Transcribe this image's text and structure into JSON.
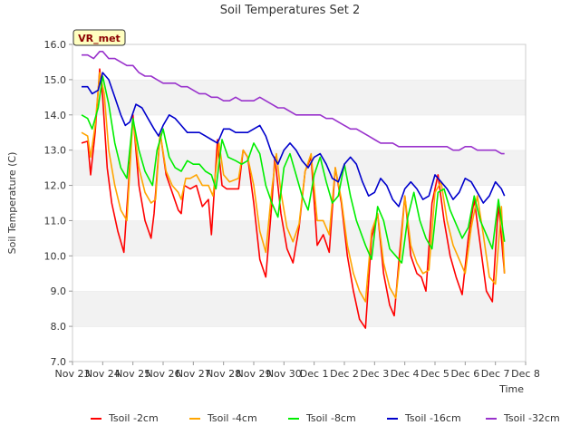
{
  "chart_data": {
    "type": "line",
    "title": "Soil Temperatures Set 2",
    "xlabel": "Time",
    "ylabel": "Soil Temperature (C)",
    "xlim": [
      0,
      15
    ],
    "ylim": [
      7.0,
      16.0
    ],
    "yticks": [
      "7.0",
      "8.0",
      "9.0",
      "10.0",
      "11.0",
      "12.0",
      "13.0",
      "14.0",
      "15.0",
      "16.0"
    ],
    "xtick_labels": [
      "Nov 23",
      "Nov 24",
      "Nov 25",
      "Nov 26",
      "Nov 27",
      "Nov 28",
      "Nov 29",
      "Nov 30",
      "Dec 1",
      "Dec 2",
      "Dec 3",
      "Dec 4",
      "Dec 5",
      "Dec 6",
      "Dec 7",
      "Dec 8"
    ],
    "grid": "horizontal bands",
    "legend_position": "bottom",
    "station_badge": "VR_met",
    "series": [
      {
        "name": "Tsoil -2cm",
        "color": "#ff0000",
        "x": [
          0.3,
          0.5,
          0.6,
          0.75,
          0.9,
          1.0,
          1.15,
          1.3,
          1.5,
          1.7,
          1.85,
          2.0,
          2.2,
          2.4,
          2.6,
          2.7,
          2.9,
          3.1,
          3.3,
          3.5,
          3.6,
          3.7,
          3.9,
          4.1,
          4.3,
          4.5,
          4.6,
          4.8,
          4.95,
          5.1,
          5.3,
          5.5,
          5.65,
          5.8,
          6.0,
          6.2,
          6.4,
          6.6,
          6.7,
          6.9,
          7.1,
          7.3,
          7.5,
          7.7,
          7.9,
          8.1,
          8.3,
          8.5,
          8.7,
          8.9,
          9.1,
          9.3,
          9.5,
          9.7,
          9.9,
          10.1,
          10.3,
          10.5,
          10.65,
          10.8,
          11.0,
          11.2,
          11.4,
          11.55,
          11.7,
          11.9,
          12.1,
          12.3,
          12.5,
          12.7,
          12.9,
          13.1,
          13.3,
          13.5,
          13.7,
          13.9,
          14.1,
          14.3
        ],
        "y": [
          13.2,
          13.25,
          12.3,
          13.5,
          15.3,
          14.5,
          12.5,
          11.5,
          10.7,
          10.1,
          12.0,
          14.0,
          12.0,
          11.0,
          10.5,
          11.2,
          13.5,
          12.3,
          11.8,
          11.3,
          11.2,
          12.0,
          11.9,
          12.0,
          11.4,
          11.6,
          10.6,
          13.3,
          12.0,
          11.9,
          11.9,
          11.9,
          13.0,
          12.8,
          11.5,
          9.9,
          9.4,
          11.5,
          12.8,
          11.2,
          10.2,
          9.8,
          10.8,
          12.4,
          12.8,
          10.3,
          10.6,
          10.1,
          12.5,
          11.5,
          10.0,
          9.0,
          8.2,
          7.95,
          10.5,
          11.2,
          9.5,
          8.6,
          8.3,
          9.8,
          11.7,
          10.0,
          9.5,
          9.4,
          9.0,
          11.5,
          12.3,
          11.0,
          10.0,
          9.4,
          8.9,
          10.5,
          11.6,
          10.3,
          9.0,
          8.7,
          11.5,
          9.5
        ],
        "_": ""
      },
      {
        "name": "Tsoil -4cm",
        "color": "#ffa500",
        "x": [
          0.3,
          0.5,
          0.6,
          0.75,
          0.9,
          1.05,
          1.2,
          1.4,
          1.6,
          1.8,
          2.0,
          2.2,
          2.4,
          2.6,
          2.75,
          2.9,
          3.1,
          3.3,
          3.5,
          3.6,
          3.75,
          3.9,
          4.1,
          4.3,
          4.5,
          4.65,
          4.85,
          5.0,
          5.2,
          5.5,
          5.65,
          5.8,
          6.0,
          6.2,
          6.4,
          6.6,
          6.75,
          6.9,
          7.1,
          7.3,
          7.5,
          7.7,
          7.9,
          8.1,
          8.3,
          8.5,
          8.7,
          8.9,
          9.1,
          9.3,
          9.5,
          9.7,
          9.9,
          10.1,
          10.3,
          10.5,
          10.7,
          10.85,
          11.0,
          11.2,
          11.4,
          11.6,
          11.8,
          12.0,
          12.2,
          12.4,
          12.6,
          12.8,
          13.0,
          13.2,
          13.4,
          13.6,
          13.8,
          14.0,
          14.2,
          14.3
        ],
        "y": [
          13.5,
          13.4,
          12.8,
          13.7,
          15.2,
          14.6,
          13.0,
          12.0,
          11.3,
          11.0,
          13.9,
          12.5,
          11.8,
          11.5,
          11.6,
          13.5,
          12.4,
          12.0,
          11.8,
          11.6,
          12.2,
          12.2,
          12.3,
          12.0,
          12.0,
          11.7,
          13.2,
          12.3,
          12.1,
          12.2,
          13.0,
          12.8,
          12.0,
          10.7,
          10.1,
          11.9,
          12.9,
          11.8,
          10.8,
          10.4,
          10.9,
          12.4,
          12.9,
          11.0,
          11.0,
          10.6,
          12.5,
          11.6,
          10.3,
          9.5,
          9.0,
          8.7,
          10.7,
          11.2,
          9.8,
          9.1,
          8.8,
          10.0,
          11.7,
          10.3,
          9.8,
          9.5,
          9.6,
          11.8,
          12.1,
          11.0,
          10.3,
          9.9,
          9.5,
          10.8,
          11.7,
          10.6,
          9.4,
          9.2,
          11.4,
          9.5
        ]
      },
      {
        "name": "Tsoil -8cm",
        "color": "#00ee00",
        "x": [
          0.3,
          0.5,
          0.65,
          0.85,
          1.0,
          1.2,
          1.4,
          1.6,
          1.8,
          2.0,
          2.2,
          2.4,
          2.65,
          2.8,
          3.0,
          3.2,
          3.4,
          3.6,
          3.8,
          4.0,
          4.2,
          4.4,
          4.6,
          4.75,
          4.95,
          5.15,
          5.4,
          5.6,
          5.8,
          6.0,
          6.2,
          6.4,
          6.6,
          6.8,
          7.0,
          7.2,
          7.4,
          7.6,
          7.8,
          8.0,
          8.2,
          8.4,
          8.6,
          8.8,
          9.0,
          9.2,
          9.4,
          9.7,
          9.9,
          10.1,
          10.3,
          10.5,
          10.7,
          10.9,
          11.1,
          11.3,
          11.5,
          11.7,
          11.9,
          12.1,
          12.3,
          12.5,
          12.7,
          12.9,
          13.1,
          13.3,
          13.5,
          13.7,
          13.9,
          14.1,
          14.3
        ],
        "y": [
          14.0,
          13.9,
          13.6,
          14.2,
          15.1,
          14.3,
          13.2,
          12.5,
          12.2,
          13.9,
          13.0,
          12.4,
          12.0,
          13.0,
          13.6,
          12.8,
          12.5,
          12.4,
          12.7,
          12.6,
          12.6,
          12.4,
          12.3,
          11.9,
          13.3,
          12.8,
          12.7,
          12.6,
          12.7,
          13.2,
          12.9,
          12.0,
          11.5,
          11.1,
          12.5,
          12.9,
          12.3,
          11.7,
          11.3,
          12.3,
          12.8,
          12.1,
          11.5,
          11.7,
          12.6,
          11.7,
          11.0,
          10.3,
          9.9,
          11.4,
          11.0,
          10.2,
          10.0,
          9.8,
          11.1,
          11.8,
          11.0,
          10.5,
          10.2,
          11.8,
          11.9,
          11.3,
          10.9,
          10.5,
          10.8,
          11.7,
          11.0,
          10.6,
          10.2,
          11.6,
          10.4
        ]
      },
      {
        "name": "Tsoil -16cm",
        "color": "#0000cc",
        "x": [
          0.3,
          0.5,
          0.65,
          0.85,
          1.0,
          1.2,
          1.4,
          1.6,
          1.75,
          1.9,
          2.1,
          2.3,
          2.5,
          2.7,
          2.85,
          3.0,
          3.2,
          3.4,
          3.6,
          3.8,
          4.0,
          4.2,
          4.4,
          4.6,
          4.8,
          5.0,
          5.2,
          5.4,
          5.6,
          5.8,
          6.0,
          6.2,
          6.4,
          6.6,
          6.8,
          7.0,
          7.2,
          7.4,
          7.6,
          7.8,
          8.0,
          8.2,
          8.4,
          8.6,
          8.8,
          9.0,
          9.2,
          9.4,
          9.6,
          9.8,
          10.0,
          10.2,
          10.4,
          10.6,
          10.8,
          11.0,
          11.2,
          11.4,
          11.6,
          11.8,
          12.0,
          12.2,
          12.4,
          12.6,
          12.8,
          13.0,
          13.2,
          13.4,
          13.6,
          13.8,
          14.0,
          14.2,
          14.3
        ],
        "y": [
          14.8,
          14.8,
          14.6,
          14.7,
          15.2,
          15.0,
          14.5,
          14.0,
          13.7,
          13.8,
          14.3,
          14.2,
          13.9,
          13.6,
          13.4,
          13.7,
          14.0,
          13.9,
          13.7,
          13.5,
          13.5,
          13.5,
          13.4,
          13.3,
          13.2,
          13.6,
          13.6,
          13.5,
          13.5,
          13.5,
          13.6,
          13.7,
          13.4,
          12.9,
          12.6,
          13.0,
          13.2,
          13.0,
          12.7,
          12.5,
          12.8,
          12.9,
          12.6,
          12.2,
          12.1,
          12.6,
          12.8,
          12.6,
          12.1,
          11.7,
          11.8,
          12.2,
          12.0,
          11.6,
          11.4,
          11.9,
          12.1,
          11.9,
          11.6,
          11.7,
          12.3,
          12.1,
          11.9,
          11.6,
          11.8,
          12.2,
          12.1,
          11.8,
          11.5,
          11.7,
          12.1,
          11.9,
          11.7
        ]
      },
      {
        "name": "Tsoil -32cm",
        "color": "#9932cc",
        "x": [
          0.3,
          0.5,
          0.7,
          0.9,
          1.0,
          1.2,
          1.4,
          1.6,
          1.8,
          2.0,
          2.2,
          2.4,
          2.6,
          2.8,
          3.0,
          3.2,
          3.4,
          3.6,
          3.8,
          4.0,
          4.2,
          4.4,
          4.6,
          4.8,
          5.0,
          5.2,
          5.4,
          5.6,
          5.8,
          6.0,
          6.2,
          6.4,
          6.6,
          6.8,
          7.0,
          7.2,
          7.4,
          7.6,
          7.8,
          8.0,
          8.2,
          8.4,
          8.6,
          8.8,
          9.0,
          9.2,
          9.4,
          9.6,
          9.8,
          10.0,
          10.2,
          10.4,
          10.6,
          10.8,
          11.0,
          11.2,
          11.4,
          11.6,
          11.8,
          12.0,
          12.2,
          12.4,
          12.6,
          12.8,
          13.0,
          13.2,
          13.4,
          13.6,
          13.8,
          14.0,
          14.2,
          14.3
        ],
        "y": [
          15.7,
          15.7,
          15.6,
          15.8,
          15.8,
          15.6,
          15.6,
          15.5,
          15.4,
          15.4,
          15.2,
          15.1,
          15.1,
          15.0,
          14.9,
          14.9,
          14.9,
          14.8,
          14.8,
          14.7,
          14.6,
          14.6,
          14.5,
          14.5,
          14.4,
          14.4,
          14.5,
          14.4,
          14.4,
          14.4,
          14.5,
          14.4,
          14.3,
          14.2,
          14.2,
          14.1,
          14.0,
          14.0,
          14.0,
          14.0,
          14.0,
          13.9,
          13.9,
          13.8,
          13.7,
          13.6,
          13.6,
          13.5,
          13.4,
          13.3,
          13.2,
          13.2,
          13.2,
          13.1,
          13.1,
          13.1,
          13.1,
          13.1,
          13.1,
          13.1,
          13.1,
          13.1,
          13.0,
          13.0,
          13.1,
          13.1,
          13.0,
          13.0,
          13.0,
          13.0,
          12.9,
          12.9
        ]
      }
    ]
  }
}
